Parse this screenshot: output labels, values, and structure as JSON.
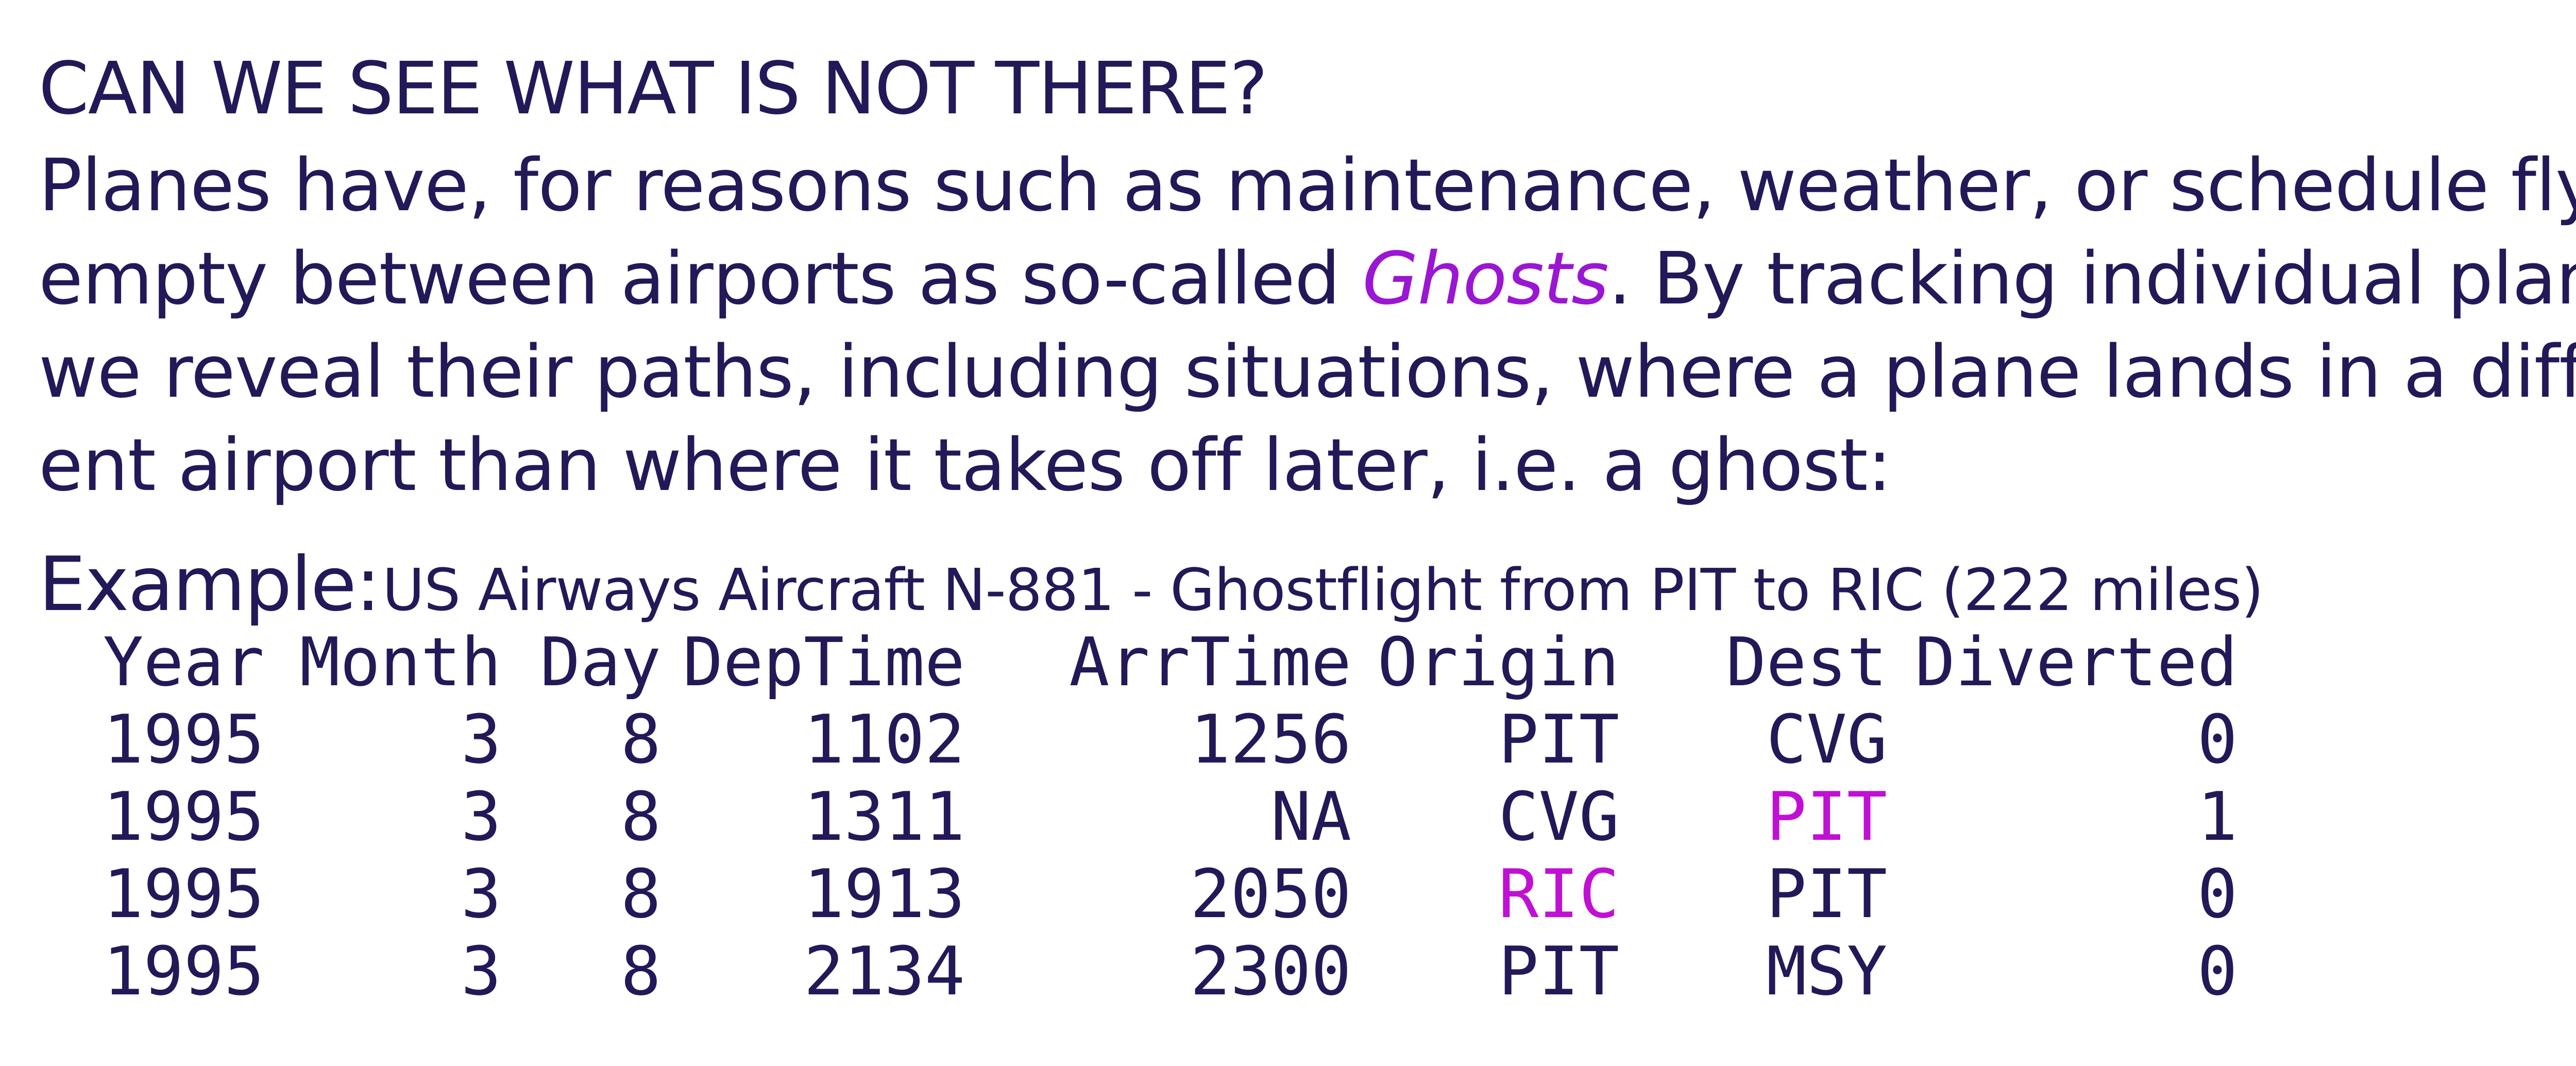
{
  "heading": "CAN WE SEE WHAT IS NOT THERE?",
  "paragraph": {
    "line1": "Planes have, for reasons such as maintenance, weather, or schedule fly",
    "line2_before": "empty between airports as so-called ",
    "line2_ghost_word": "Ghosts",
    "line2_after": ". By tracking individual planes,",
    "line3": "we reveal their paths, including situations, where a plane lands in a differ-",
    "line4": "ent airport than where it takes off later, i.e. a ghost:"
  },
  "example": {
    "label": "Example:",
    "caption": "US Airways Aircraft N-881 - Ghostflight from PIT to RIC (222 miles)"
  },
  "table": {
    "headers": {
      "year": "Year",
      "month": "Month",
      "day": "Day",
      "deptime": "DepTime",
      "arrtime": "ArrTime",
      "origin": "Origin",
      "dest": "Dest",
      "diverted": "Diverted"
    },
    "rows": [
      {
        "year": "1995",
        "month": "3",
        "day": "8",
        "deptime": "1102",
        "arrtime": "1256",
        "origin": "PIT",
        "dest": "CVG",
        "diverted": "0"
      },
      {
        "year": "1995",
        "month": "3",
        "day": "8",
        "deptime": "1311",
        "arrtime": "NA",
        "origin": "CVG",
        "dest": "PIT",
        "diverted": "1"
      },
      {
        "year": "1995",
        "month": "3",
        "day": "8",
        "deptime": "1913",
        "arrtime": "2050",
        "origin": "RIC",
        "dest": "PIT",
        "diverted": "0"
      },
      {
        "year": "1995",
        "month": "3",
        "day": "8",
        "deptime": "2134",
        "arrtime": "2300",
        "origin": "PIT",
        "dest": "MSY",
        "diverted": "0"
      }
    ]
  },
  "colors": {
    "text": "#221958",
    "ghost_highlight": "#9a16d3",
    "cell_highlight": "#c010d4",
    "background": "#ffffff"
  }
}
